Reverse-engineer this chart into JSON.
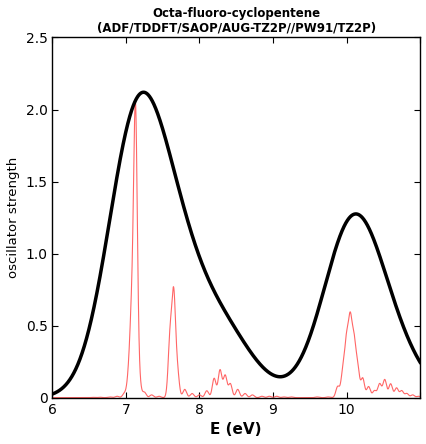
{
  "title_line1": "Octa-fluoro-cyclopentene",
  "title_line2": "(ADF/TDDFT/SAOP/AUG-TZ2P//PW91/TZ2P)",
  "xlabel": "E (eV)",
  "ylabel": "oscillator strength",
  "xlim": [
    6,
    11
  ],
  "ylim": [
    0,
    2.5
  ],
  "xticks": [
    6,
    7,
    8,
    9,
    10,
    11
  ],
  "yticks": [
    0,
    0.5,
    1.0,
    1.5,
    2.0,
    2.5
  ],
  "stick_color": "#ff6666",
  "curve_color": "#000000",
  "background_color": "#ffffff",
  "sigma_red": 0.025,
  "sigma_black": 0.38,
  "sticks": [
    [
      6.55,
      0.002
    ],
    [
      6.65,
      0.003
    ],
    [
      6.78,
      0.005
    ],
    [
      6.88,
      0.01
    ],
    [
      6.98,
      0.03
    ],
    [
      7.04,
      0.15
    ],
    [
      7.08,
      0.55
    ],
    [
      7.13,
      2.06
    ],
    [
      7.18,
      0.12
    ],
    [
      7.25,
      0.04
    ],
    [
      7.35,
      0.02
    ],
    [
      7.45,
      0.01
    ],
    [
      7.6,
      0.42
    ],
    [
      7.65,
      0.72
    ],
    [
      7.7,
      0.18
    ],
    [
      7.8,
      0.06
    ],
    [
      7.9,
      0.03
    ],
    [
      8.0,
      0.02
    ],
    [
      8.1,
      0.05
    ],
    [
      8.2,
      0.14
    ],
    [
      8.28,
      0.2
    ],
    [
      8.35,
      0.16
    ],
    [
      8.42,
      0.1
    ],
    [
      8.52,
      0.06
    ],
    [
      8.62,
      0.03
    ],
    [
      8.72,
      0.02
    ],
    [
      8.85,
      0.01
    ],
    [
      8.95,
      0.01
    ],
    [
      9.05,
      0.01
    ],
    [
      9.15,
      0.005
    ],
    [
      9.25,
      0.005
    ],
    [
      9.6,
      0.005
    ],
    [
      9.75,
      0.005
    ],
    [
      9.88,
      0.08
    ],
    [
      9.95,
      0.18
    ],
    [
      10.0,
      0.38
    ],
    [
      10.05,
      0.52
    ],
    [
      10.1,
      0.38
    ],
    [
      10.15,
      0.22
    ],
    [
      10.22,
      0.14
    ],
    [
      10.3,
      0.08
    ],
    [
      10.38,
      0.05
    ],
    [
      10.45,
      0.1
    ],
    [
      10.52,
      0.13
    ],
    [
      10.6,
      0.1
    ],
    [
      10.68,
      0.07
    ],
    [
      10.75,
      0.05
    ],
    [
      10.82,
      0.03
    ],
    [
      10.9,
      0.02
    ],
    [
      10.98,
      0.01
    ]
  ]
}
